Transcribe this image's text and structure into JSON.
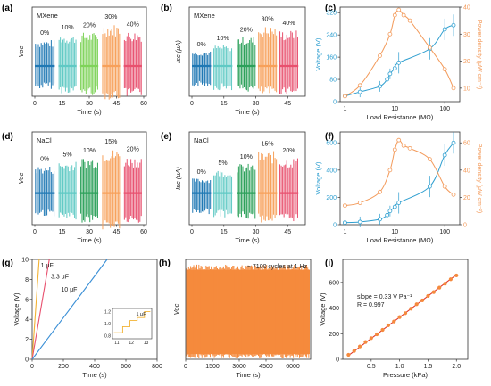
{
  "panel_labels": [
    "(a)",
    "(b)",
    "(c)",
    "(d)",
    "(e)",
    "(f)",
    "(g)",
    "(h)",
    "(i)"
  ],
  "chart_data": [
    {
      "id": "a",
      "type": "line",
      "material": "MXene",
      "xlabel": "Time (s)",
      "ylabel": "Voc",
      "xticks": [
        0,
        15,
        30,
        45,
        60
      ],
      "xlim": [
        0,
        60
      ],
      "segments": [
        {
          "label": "0%",
          "x": [
            0,
            11
          ],
          "amp_pos": 25,
          "amp_neg": 22,
          "color": "#1f78b4"
        },
        {
          "label": "10%",
          "x": [
            13,
            23
          ],
          "amp_pos": 30,
          "amp_neg": 26,
          "color": "#5fc9c4"
        },
        {
          "label": "20%",
          "x": [
            25,
            35
          ],
          "amp_pos": 32,
          "amp_neg": 28,
          "color": "#7fd35a"
        },
        {
          "label": "30%",
          "x": [
            37,
            47
          ],
          "amp_pos": 40,
          "amp_neg": 32,
          "color": "#f7a05a"
        },
        {
          "label": "40%",
          "x": [
            49,
            59
          ],
          "amp_pos": 33,
          "amp_neg": 30,
          "color": "#e8506e"
        }
      ]
    },
    {
      "id": "b",
      "type": "line",
      "material": "MXene",
      "xlabel": "Time (s)",
      "ylabel": "Isc (μA)",
      "xticks": [
        0,
        15,
        30,
        45
      ],
      "xlim": [
        0,
        52
      ],
      "segments": [
        {
          "label": "0%",
          "x": [
            0,
            9
          ],
          "amp_pos": 14,
          "amp_neg": 20,
          "color": "#1f78b4"
        },
        {
          "label": "10%",
          "x": [
            10,
            19
          ],
          "amp_pos": 20,
          "amp_neg": 23,
          "color": "#5fc9c4"
        },
        {
          "label": "20%",
          "x": [
            21,
            30
          ],
          "amp_pos": 28,
          "amp_neg": 25,
          "color": "#2ca05a"
        },
        {
          "label": "30%",
          "x": [
            31,
            40
          ],
          "amp_pos": 38,
          "amp_neg": 28,
          "color": "#f7a05a"
        },
        {
          "label": "40%",
          "x": [
            41,
            50
          ],
          "amp_pos": 34,
          "amp_neg": 27,
          "color": "#e8506e"
        }
      ]
    },
    {
      "id": "c",
      "type": "line",
      "xlabel": "Load Resistance (MΩ)",
      "ylabel": "Voltage (V)",
      "y2label": "Power density (μW cm⁻²)",
      "xscale": "log",
      "xlim": [
        0.8,
        200
      ],
      "xticks": [
        1,
        10,
        100
      ],
      "ylim": [
        0,
        340
      ],
      "yticks": [
        0,
        80,
        160,
        240,
        320
      ],
      "y2lim": [
        5,
        40
      ],
      "y2ticks": [
        10,
        20,
        30,
        40
      ],
      "voltage": {
        "x": [
          1,
          2,
          5,
          7,
          8,
          10,
          12,
          50,
          100,
          150
        ],
        "y": [
          20,
          35,
          55,
          80,
          100,
          120,
          140,
          190,
          260,
          275
        ]
      },
      "power": {
        "x": [
          1,
          2,
          5,
          8,
          10,
          12,
          15,
          20,
          50,
          100,
          150
        ],
        "y": [
          7,
          11,
          22,
          30,
          37,
          39,
          37,
          35,
          25,
          17,
          10
        ]
      }
    },
    {
      "id": "d",
      "type": "line",
      "material": "NaCl",
      "xlabel": "Time (s)",
      "ylabel": "Voc",
      "xticks": [
        0,
        15,
        30,
        45,
        60
      ],
      "xlim": [
        0,
        60
      ],
      "segments": [
        {
          "label": "0%",
          "x": [
            0,
            11
          ],
          "amp_pos": 26,
          "amp_neg": 22,
          "color": "#1f78b4"
        },
        {
          "label": "5%",
          "x": [
            13,
            23
          ],
          "amp_pos": 30,
          "amp_neg": 26,
          "color": "#5fc9c4"
        },
        {
          "label": "10%",
          "x": [
            25,
            35
          ],
          "amp_pos": 34,
          "amp_neg": 28,
          "color": "#2ca05a"
        },
        {
          "label": "15%",
          "x": [
            37,
            47
          ],
          "amp_pos": 42,
          "amp_neg": 35,
          "color": "#f7a05a"
        },
        {
          "label": "20%",
          "x": [
            49,
            59
          ],
          "amp_pos": 35,
          "amp_neg": 30,
          "color": "#e8506e"
        }
      ]
    },
    {
      "id": "e",
      "type": "line",
      "material": "NaCl",
      "xlabel": "Time (s)",
      "ylabel": "Isc (μA)",
      "xticks": [
        0,
        15,
        30,
        45
      ],
      "xlim": [
        0,
        52
      ],
      "segments": [
        {
          "label": "0%",
          "x": [
            0,
            9
          ],
          "amp_pos": 14,
          "amp_neg": 20,
          "color": "#1f78b4"
        },
        {
          "label": "5%",
          "x": [
            10,
            19
          ],
          "amp_pos": 22,
          "amp_neg": 23,
          "color": "#5fc9c4"
        },
        {
          "label": "10%",
          "x": [
            21,
            30
          ],
          "amp_pos": 28,
          "amp_neg": 25,
          "color": "#2ca05a"
        },
        {
          "label": "15%",
          "x": [
            31,
            40
          ],
          "amp_pos": 40,
          "amp_neg": 28,
          "color": "#f7a05a"
        },
        {
          "label": "20%",
          "x": [
            41,
            50
          ],
          "amp_pos": 34,
          "amp_neg": 27,
          "color": "#e8506e"
        }
      ]
    },
    {
      "id": "f",
      "type": "line",
      "xlabel": "Load Resistance (MΩ)",
      "ylabel": "Voltage (V)",
      "y2label": "Power density (μW cm⁻²)",
      "xscale": "log",
      "xlim": [
        0.8,
        200
      ],
      "xticks": [
        1,
        10,
        100
      ],
      "ylim": [
        0,
        680
      ],
      "yticks": [
        0,
        200,
        400,
        600
      ],
      "y2lim": [
        0,
        68
      ],
      "y2ticks": [
        0,
        20,
        40,
        60
      ],
      "voltage": {
        "x": [
          1,
          2,
          5,
          7,
          8,
          10,
          12,
          50,
          100,
          150
        ],
        "y": [
          15,
          20,
          40,
          70,
          100,
          130,
          160,
          280,
          510,
          600
        ]
      },
      "power": {
        "x": [
          1,
          2,
          5,
          8,
          10,
          12,
          15,
          20,
          50,
          100,
          150
        ],
        "y": [
          14,
          16,
          24,
          40,
          55,
          62,
          58,
          56,
          48,
          28,
          22
        ]
      }
    },
    {
      "id": "g",
      "type": "line",
      "xlabel": "Time (s)",
      "ylabel": "Voltage (V)",
      "xlim": [
        0,
        800
      ],
      "xticks": [
        0,
        200,
        400,
        600,
        800
      ],
      "ylim": [
        0,
        10
      ],
      "yticks": [
        0,
        2,
        4,
        6,
        8,
        10
      ],
      "series": [
        {
          "name": "1 μF",
          "x": [
            0,
            45
          ],
          "y": [
            0,
            10
          ],
          "color": "#f2b233"
        },
        {
          "name": "3.3 μF",
          "x": [
            0,
            110
          ],
          "y": [
            0,
            10
          ],
          "color": "#e8506e"
        },
        {
          "name": "10 μF",
          "x": [
            0,
            480
          ],
          "y": [
            0,
            10
          ],
          "color": "#3a8fd6"
        }
      ],
      "inset": {
        "label": "1 μF",
        "xlim": [
          10.7,
          13.4
        ],
        "xticks": [
          11,
          12,
          13
        ],
        "ylim": [
          0.75,
          1.25
        ],
        "yticks": [
          0.8,
          1.0,
          1.2
        ],
        "x": [
          10.8,
          11.4,
          11.4,
          11.9,
          11.9,
          12.4,
          12.4,
          12.9,
          12.9,
          13.3
        ],
        "y": [
          0.85,
          0.85,
          0.95,
          0.95,
          1.05,
          1.05,
          1.1,
          1.1,
          1.2,
          1.2
        ]
      }
    },
    {
      "id": "h",
      "type": "area",
      "xlabel": "Time (s)",
      "ylabel": "Voc",
      "xlim": [
        0,
        7000
      ],
      "xticks": [
        0,
        1500,
        3000,
        4500,
        6000
      ],
      "ylim": [
        -350,
        600
      ],
      "annotation": "~ 7100 cycles at 1 Hz",
      "band": {
        "top": 500,
        "bottom": -300,
        "color": "#f58a3d"
      }
    },
    {
      "id": "i",
      "type": "scatter",
      "xlabel": "Pressure (kPa)",
      "ylabel": "Voltage (V)",
      "xlim": [
        0,
        2.2
      ],
      "xticks": [
        0.5,
        1.0,
        1.5,
        2.0
      ],
      "ylim": [
        0,
        780
      ],
      "yticks": [
        0,
        200,
        400,
        600
      ],
      "annotation_lines": [
        "slope = 0.33 V Pa⁻¹",
        "R = 0.997"
      ],
      "x": [
        0.1,
        0.2,
        0.3,
        0.4,
        0.5,
        0.6,
        0.7,
        0.8,
        0.9,
        1.0,
        1.1,
        1.2,
        1.3,
        1.4,
        1.5,
        1.6,
        1.7,
        1.8,
        1.9,
        2.0
      ],
      "y": [
        35,
        65,
        100,
        135,
        165,
        195,
        230,
        265,
        295,
        330,
        360,
        395,
        430,
        460,
        495,
        525,
        560,
        590,
        625,
        655
      ],
      "fit": {
        "x": [
          0.1,
          2.0
        ],
        "y": [
          30,
          660
        ],
        "color": "#e23a2a"
      },
      "marker_color": "#f58a3d"
    }
  ]
}
